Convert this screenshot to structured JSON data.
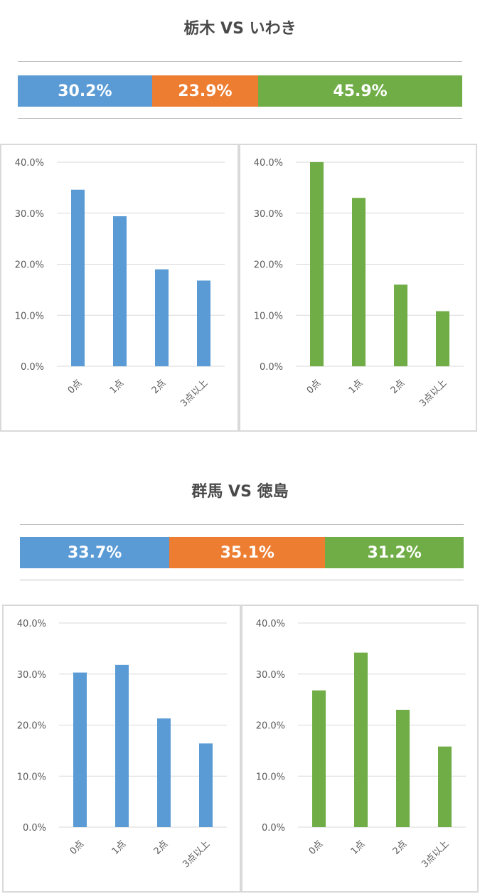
{
  "colors": {
    "home": "#5b9bd5",
    "draw": "#ed7d31",
    "away": "#70ad47"
  },
  "chart_data": [
    {
      "title": "栃木 VS いわき",
      "type": "bar",
      "result_bar": [
        {
          "label": "30.2%",
          "value": 30.2,
          "color": "#5b9bd5"
        },
        {
          "label": "23.9%",
          "value": 23.9,
          "color": "#ed7d31"
        },
        {
          "label": "45.9%",
          "value": 45.9,
          "color": "#70ad47"
        }
      ],
      "charts": [
        {
          "type": "bar",
          "categories": [
            "0点",
            "1点",
            "2点",
            "3点以上"
          ],
          "values": [
            34.6,
            29.4,
            19.0,
            16.8
          ],
          "ylim": [
            0,
            40
          ],
          "yticks": [
            "0.0%",
            "10.0%",
            "20.0%",
            "30.0%",
            "40.0%"
          ],
          "color": "#5b9bd5"
        },
        {
          "type": "bar",
          "categories": [
            "0点",
            "1点",
            "2点",
            "3点以上"
          ],
          "values": [
            40.0,
            33.0,
            16.0,
            10.8
          ],
          "ylim": [
            0,
            40
          ],
          "yticks": [
            "0.0%",
            "10.0%",
            "20.0%",
            "30.0%",
            "40.0%"
          ],
          "color": "#70ad47"
        }
      ]
    },
    {
      "title": "群馬 VS 徳島",
      "type": "bar",
      "result_bar": [
        {
          "label": "33.7%",
          "value": 33.7,
          "color": "#5b9bd5"
        },
        {
          "label": "35.1%",
          "value": 35.1,
          "color": "#ed7d31"
        },
        {
          "label": "31.2%",
          "value": 31.2,
          "color": "#70ad47"
        }
      ],
      "charts": [
        {
          "type": "bar",
          "categories": [
            "0点",
            "1点",
            "2点",
            "3点以上"
          ],
          "values": [
            30.3,
            31.8,
            21.3,
            16.4
          ],
          "ylim": [
            0,
            40
          ],
          "yticks": [
            "0.0%",
            "10.0%",
            "20.0%",
            "30.0%",
            "40.0%"
          ],
          "color": "#5b9bd5"
        },
        {
          "type": "bar",
          "categories": [
            "0点",
            "1点",
            "2点",
            "3点以上"
          ],
          "values": [
            26.8,
            34.2,
            23.0,
            15.8
          ],
          "ylim": [
            0,
            40
          ],
          "yticks": [
            "0.0%",
            "10.0%",
            "20.0%",
            "30.0%",
            "40.0%"
          ],
          "color": "#70ad47"
        }
      ]
    }
  ]
}
